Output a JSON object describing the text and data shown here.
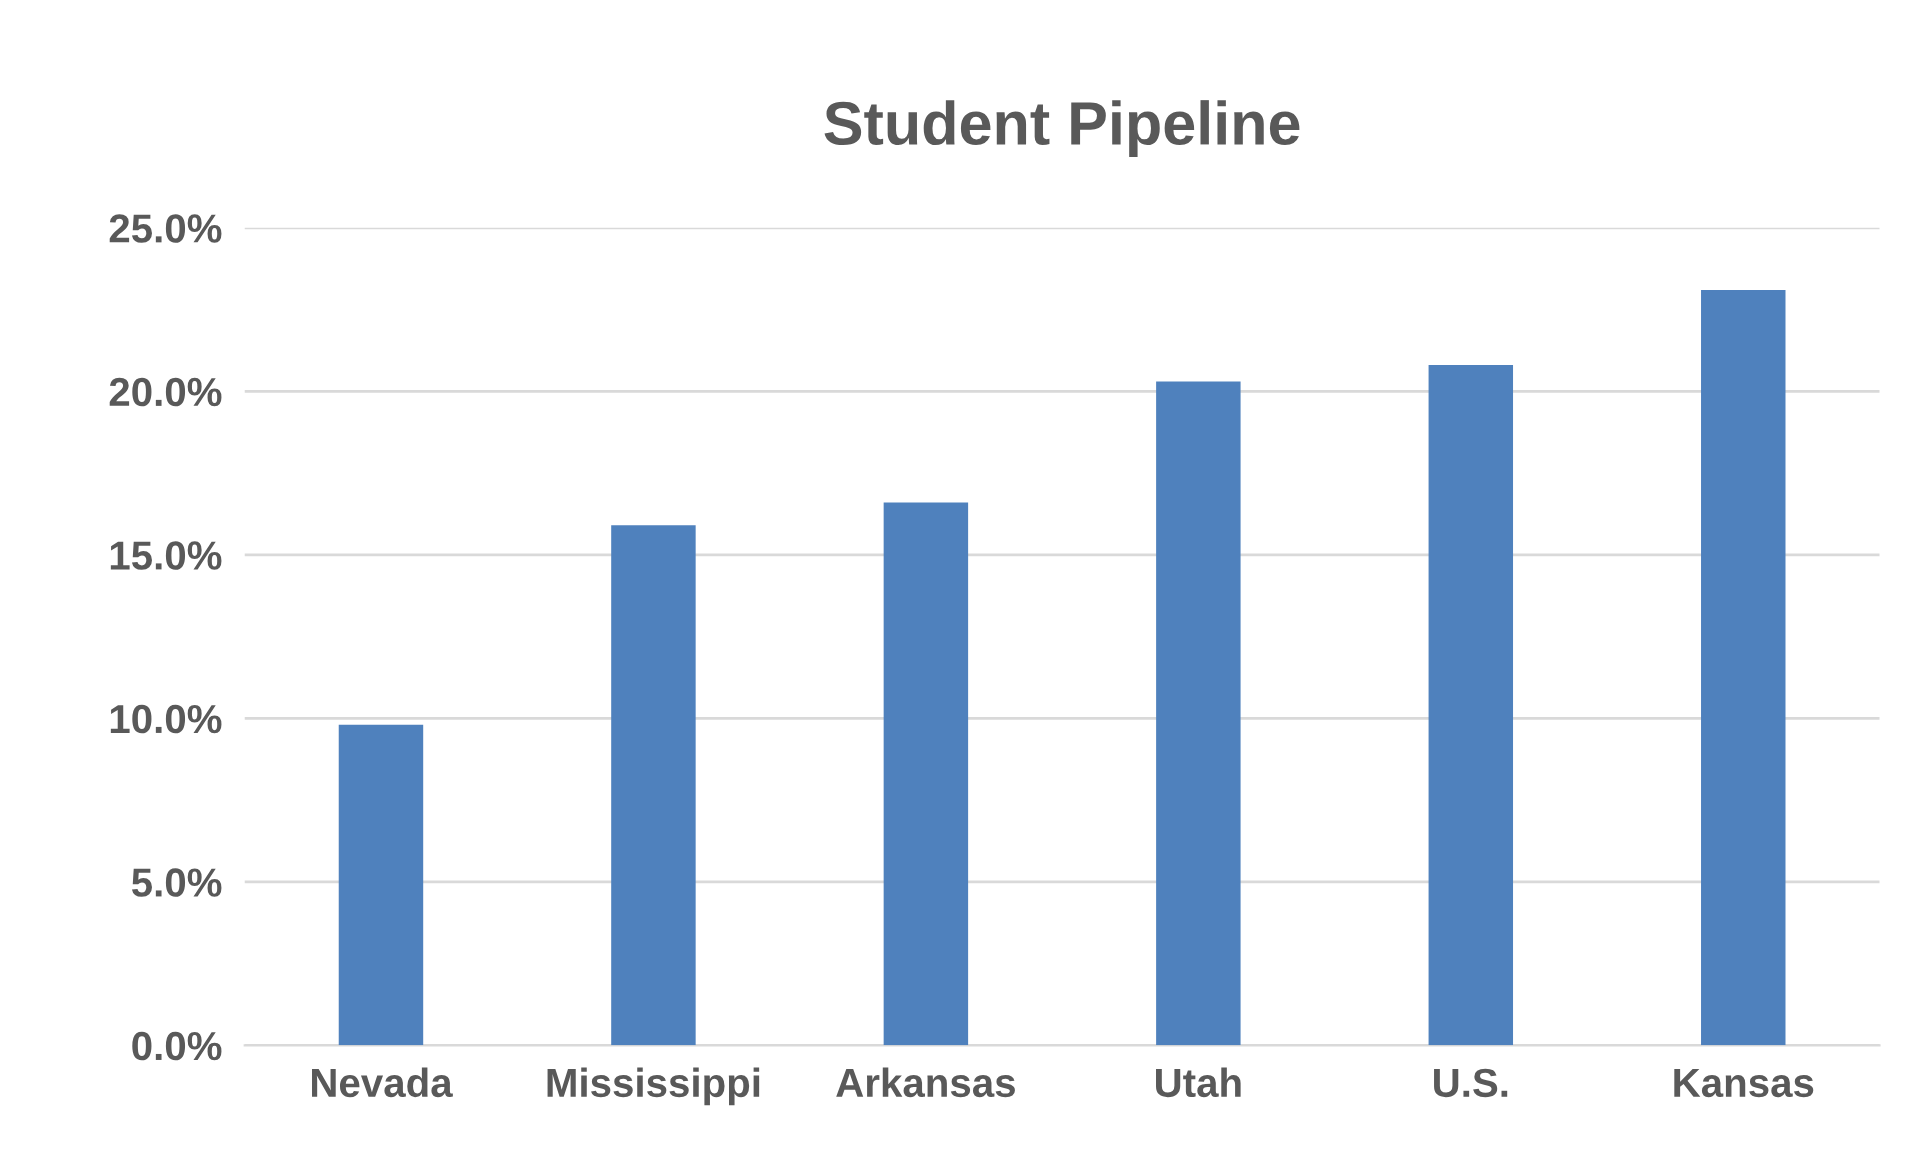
{
  "chart_data": {
    "type": "bar",
    "title": "Student Pipeline",
    "categories": [
      "Nevada",
      "Mississippi",
      "Arkansas",
      "Utah",
      "U.S.",
      "Kansas"
    ],
    "values": [
      9.8,
      15.9,
      16.6,
      20.3,
      20.8,
      23.1
    ],
    "color": "#4f81bd",
    "ylim": [
      0,
      25
    ],
    "yticks": [
      {
        "value": 0,
        "label": "0.0%"
      },
      {
        "value": 5,
        "label": "5.0%"
      },
      {
        "value": 10,
        "label": "10.0%"
      },
      {
        "value": 15,
        "label": "15.0%"
      },
      {
        "value": 20,
        "label": "20.0%"
      },
      {
        "value": 25,
        "label": "25.0%"
      }
    ],
    "grid": "y"
  }
}
